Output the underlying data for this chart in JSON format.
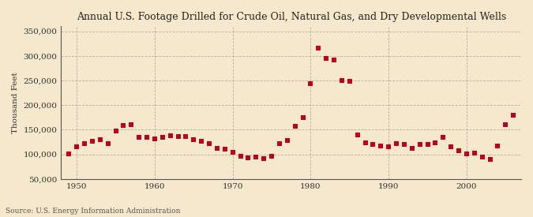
{
  "title": "Annual U.S. Footage Drilled for Crude Oil, Natural Gas, and Dry Developmental Wells",
  "ylabel": "Thousand Feet",
  "source": "Source: U.S. Energy Information Administration",
  "background_color": "#f5e8cc",
  "dot_color": "#c0001a",
  "years": [
    1949,
    1950,
    1951,
    1952,
    1953,
    1954,
    1955,
    1956,
    1957,
    1958,
    1959,
    1960,
    1961,
    1962,
    1963,
    1964,
    1965,
    1966,
    1967,
    1968,
    1969,
    1970,
    1971,
    1972,
    1973,
    1974,
    1975,
    1976,
    1977,
    1978,
    1979,
    1980,
    1981,
    1982,
    1983,
    1984,
    1985,
    1986,
    1987,
    1988,
    1989,
    1990,
    1991,
    1992,
    1993,
    1994,
    1995,
    1996,
    1997,
    1998,
    1999,
    2000,
    2001,
    2002,
    2003,
    2004,
    2005,
    2006
  ],
  "values": [
    101000,
    115000,
    122000,
    127000,
    130000,
    122000,
    148000,
    158000,
    160000,
    135000,
    135000,
    132000,
    135000,
    138000,
    137000,
    137000,
    130000,
    127000,
    122000,
    113000,
    110000,
    104000,
    97000,
    93000,
    95000,
    92000,
    96000,
    122000,
    128000,
    157000,
    175000,
    244000,
    315000,
    295000,
    292000,
    250000,
    248000,
    140000,
    124000,
    120000,
    117000,
    116000,
    122000,
    120000,
    112000,
    120000,
    120000,
    123000,
    135000,
    116000,
    107000,
    101000,
    102000,
    95000,
    90000,
    117000,
    160000,
    180000
  ],
  "ylim": [
    50000,
    360000
  ],
  "yticks": [
    50000,
    100000,
    150000,
    200000,
    250000,
    300000,
    350000
  ],
  "xlim": [
    1948,
    2007
  ],
  "xticks": [
    1950,
    1960,
    1970,
    1980,
    1990,
    2000
  ]
}
